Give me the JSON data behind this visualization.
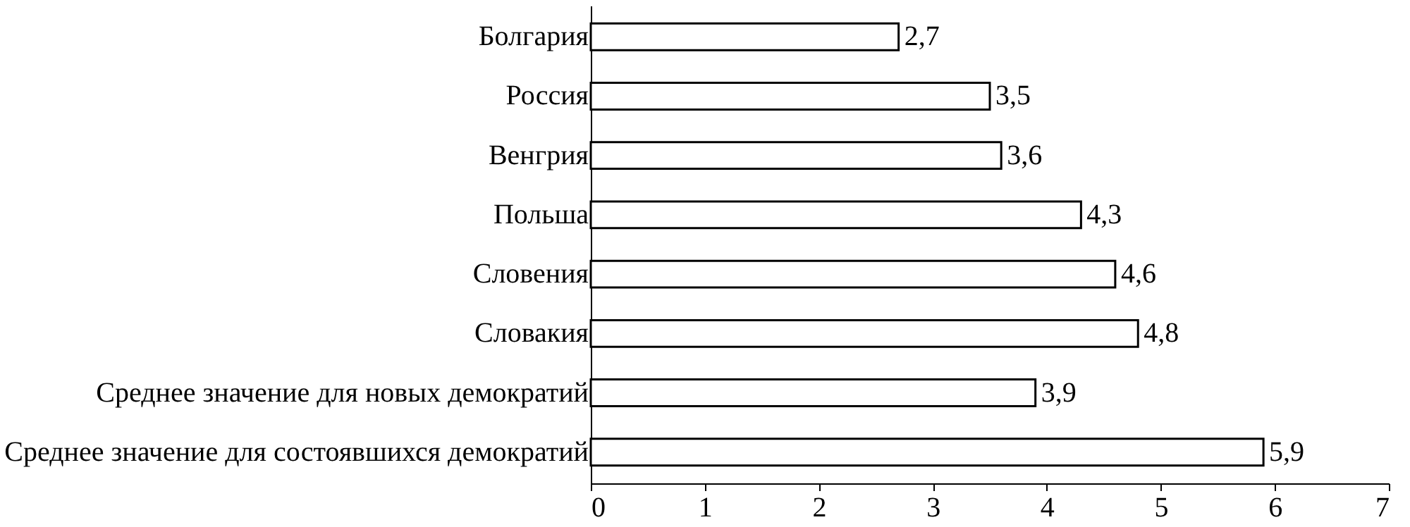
{
  "chart_data": {
    "type": "bar",
    "orientation": "horizontal",
    "categories": [
      "Болгария",
      "Россия",
      "Венгрия",
      "Польша",
      "Словения",
      "Словакия",
      "Среднее значение для новых демократий",
      "Среднее значение для состоявшихся демократий"
    ],
    "values": [
      2.7,
      3.5,
      3.6,
      4.3,
      4.6,
      4.8,
      3.9,
      5.9
    ],
    "value_labels": [
      "2,7",
      "3,5",
      "3,6",
      "4,3",
      "4,6",
      "4,8",
      "3,9",
      "5,9"
    ],
    "color": "#ffffff",
    "xlim": [
      0,
      7
    ],
    "xticks": [
      0,
      1,
      2,
      3,
      4,
      5,
      6,
      7
    ],
    "grid": false
  }
}
